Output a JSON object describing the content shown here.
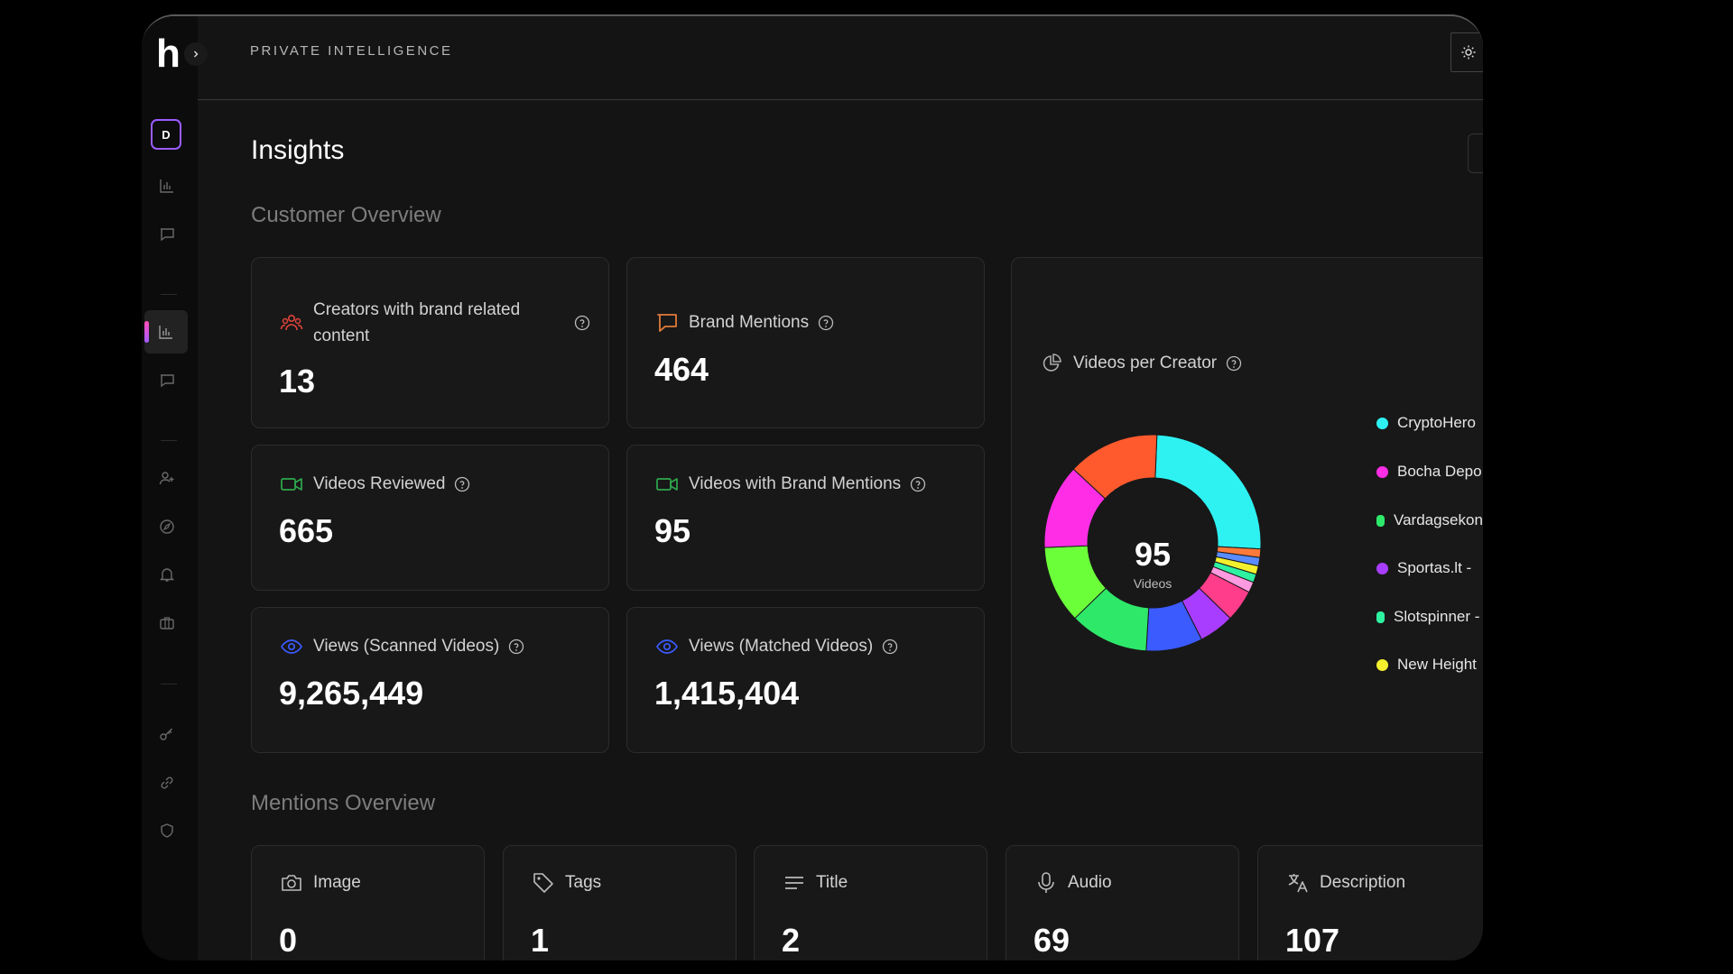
{
  "sidebar": {
    "logo": "h",
    "avatar": "D",
    "icons": [
      "bar-chart-icon",
      "message-icon",
      "bar-chart-icon",
      "message-icon",
      "user-plus-icon",
      "compass-icon",
      "bell-icon",
      "briefcase-icon",
      "key-icon",
      "link-icon",
      "shield-icon"
    ]
  },
  "header": {
    "brand": "PRIVATE INTELLIGENCE"
  },
  "page": {
    "title": "Insights",
    "customer_overview_title": "Customer Overview",
    "mentions_overview_title": "Mentions Overview"
  },
  "customer_cards": [
    {
      "label": "Creators with brand related content",
      "value": "13",
      "icon": "users-icon",
      "color": "#e0443a"
    },
    {
      "label": "Brand Mentions",
      "value": "464",
      "icon": "message-icon",
      "color": "#e07a3a"
    },
    {
      "label": "Videos Reviewed",
      "value": "665",
      "icon": "video-icon",
      "color": "#2ea84c"
    },
    {
      "label": "Videos with Brand Mentions",
      "value": "95",
      "icon": "video-icon",
      "color": "#2ea84c"
    },
    {
      "label": "Views (Scanned Videos)",
      "value": "9,265,449",
      "icon": "eye-icon",
      "color": "#3b5bff"
    },
    {
      "label": "Views (Matched Videos)",
      "value": "1,415,404",
      "icon": "eye-icon",
      "color": "#3b5bff"
    }
  ],
  "videos_per_creator": {
    "title": "Videos per Creator",
    "center_value": "95",
    "center_label": "Videos",
    "legend": [
      {
        "name": "CryptoHero",
        "color": "#2ef2f2"
      },
      {
        "name": "Bocha Depo",
        "color": "#ff2ee6"
      },
      {
        "name": "Vardagsekon",
        "color": "#2ee86a"
      },
      {
        "name": "Sportas.lt -",
        "color": "#a93dff"
      },
      {
        "name": "Slotspinner -",
        "color": "#2ef2a0"
      },
      {
        "name": "New Height",
        "color": "#f4f02e"
      }
    ],
    "slices": [
      {
        "value": 24,
        "color": "#2ef2f2"
      },
      {
        "value": 1.2,
        "color": "#ff7a3a"
      },
      {
        "value": 1.2,
        "color": "#5a8cff"
      },
      {
        "value": 1.2,
        "color": "#f4f02e"
      },
      {
        "value": 1.2,
        "color": "#2ef2a0"
      },
      {
        "value": 1.5,
        "color": "#ff9ae0"
      },
      {
        "value": 4.5,
        "color": "#ff3d8a"
      },
      {
        "value": 5,
        "color": "#a93dff"
      },
      {
        "value": 8,
        "color": "#3b5bff"
      },
      {
        "value": 11.2,
        "color": "#2ee86a"
      },
      {
        "value": 11,
        "color": "#6bff3a"
      },
      {
        "value": 12,
        "color": "#ff2ee6"
      },
      {
        "value": 13,
        "color": "#ff5a2e"
      }
    ]
  },
  "mention_cards": [
    {
      "label": "Image",
      "value": "0",
      "icon": "camera-icon"
    },
    {
      "label": "Tags",
      "value": "1",
      "icon": "tag-icon"
    },
    {
      "label": "Title",
      "value": "2",
      "icon": "text-lines-icon"
    },
    {
      "label": "Audio",
      "value": "69",
      "icon": "microphone-icon"
    },
    {
      "label": "Description",
      "value": "107",
      "icon": "translate-icon"
    }
  ]
}
